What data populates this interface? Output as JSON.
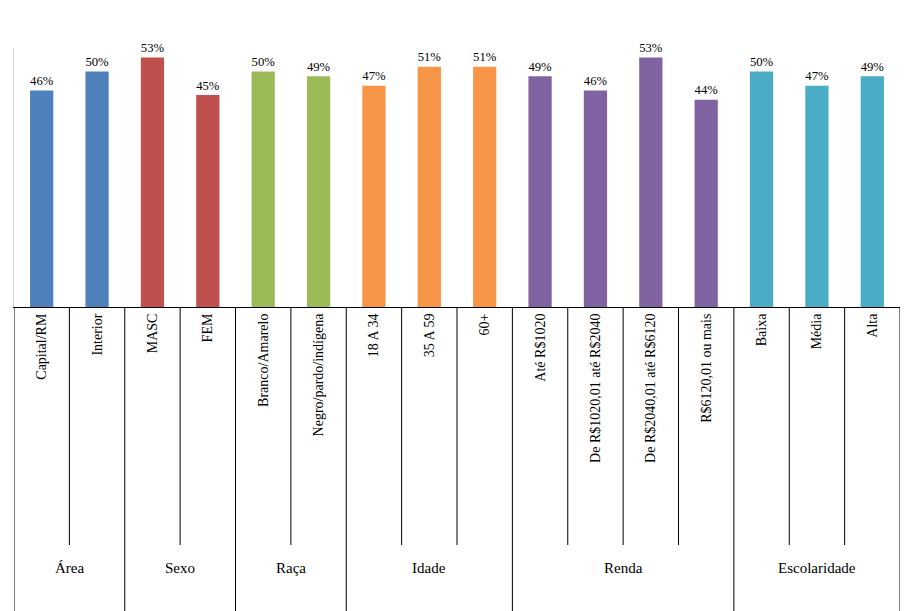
{
  "chart_data": {
    "type": "bar",
    "categories": [
      "Capital/RM",
      "Interior",
      "MASC",
      "FEM",
      "Branco/Amarelo",
      "Negro/pardo/indígena",
      "18 A 34",
      "35 A 59",
      "60+",
      "Até R$1020",
      "De R$1020,01 até R$2040",
      "De R$2040,01 até R$6120",
      "R$6120,01 ou mais",
      "Baixa",
      "Média",
      "Alta"
    ],
    "group": [
      "Área",
      "Área",
      "Sexo",
      "Sexo",
      "Raça",
      "Raça",
      "Idade",
      "Idade",
      "Idade",
      "Renda",
      "Renda",
      "Renda",
      "Renda",
      "Escolaridade",
      "Escolaridade",
      "Escolaridade"
    ],
    "values": [
      46,
      50,
      53,
      45,
      50,
      49,
      47,
      51,
      51,
      49,
      46,
      53,
      44,
      50,
      47,
      49
    ],
    "value_labels": [
      "46%",
      "50%",
      "53%",
      "45%",
      "50%",
      "49%",
      "47%",
      "51%",
      "51%",
      "49%",
      "46%",
      "53%",
      "44%",
      "50%",
      "47%",
      "49%"
    ],
    "colors": [
      "#4F81BD",
      "#4F81BD",
      "#C0504D",
      "#C0504D",
      "#9BBB59",
      "#9BBB59",
      "#F79646",
      "#F79646",
      "#F79646",
      "#8064A2",
      "#8064A2",
      "#8064A2",
      "#8064A2",
      "#4BACC6",
      "#4BACC6",
      "#4BACC6"
    ],
    "ylim": [
      0,
      55
    ],
    "grid": false,
    "data_labels": true,
    "tick_labels": "x"
  }
}
